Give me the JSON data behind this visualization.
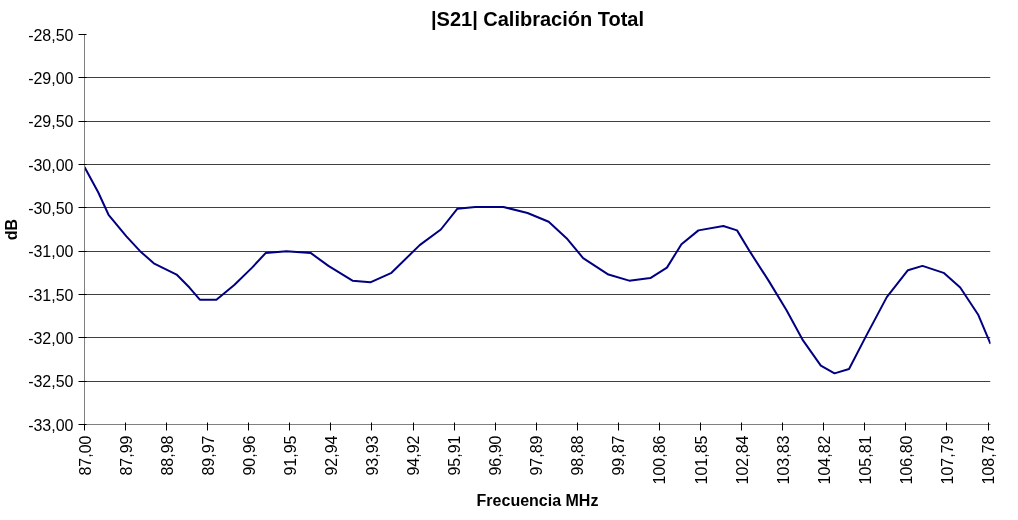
{
  "chart_data": {
    "type": "line",
    "title": "|S21| Calibración Total",
    "xlabel": "Frecuencia MHz",
    "ylabel": "dB",
    "xlim": [
      87,
      108.84
    ],
    "xticks": [
      {
        "value": 87.0,
        "label": "87,00"
      },
      {
        "value": 87.99,
        "label": "87,99"
      },
      {
        "value": 88.98,
        "label": "88,98"
      },
      {
        "value": 89.97,
        "label": "89,97"
      },
      {
        "value": 90.96,
        "label": "90,96"
      },
      {
        "value": 91.95,
        "label": "91,95"
      },
      {
        "value": 92.94,
        "label": "92,94"
      },
      {
        "value": 93.93,
        "label": "93,93"
      },
      {
        "value": 94.92,
        "label": "94,92"
      },
      {
        "value": 95.91,
        "label": "95,91"
      },
      {
        "value": 96.9,
        "label": "96,90"
      },
      {
        "value": 97.89,
        "label": "97,89"
      },
      {
        "value": 98.88,
        "label": "98,88"
      },
      {
        "value": 99.87,
        "label": "99,87"
      },
      {
        "value": 100.86,
        "label": "100,86"
      },
      {
        "value": 101.85,
        "label": "101,85"
      },
      {
        "value": 102.84,
        "label": "102,84"
      },
      {
        "value": 103.83,
        "label": "103,83"
      },
      {
        "value": 104.82,
        "label": "104,82"
      },
      {
        "value": 105.81,
        "label": "105,81"
      },
      {
        "value": 106.8,
        "label": "106,80"
      },
      {
        "value": 107.79,
        "label": "107,79"
      },
      {
        "value": 108.78,
        "label": "108,78"
      }
    ],
    "ylim": [
      -33,
      -28.5
    ],
    "yticks": [
      {
        "value": -33,
        "label": "-33,00"
      },
      {
        "value": -32.5,
        "label": "-32,50"
      },
      {
        "value": -32,
        "label": "-32,00"
      },
      {
        "value": -31.5,
        "label": "-31,50"
      },
      {
        "value": -31,
        "label": "-31,00"
      },
      {
        "value": -30.5,
        "label": "-30,50"
      },
      {
        "value": -30,
        "label": "-30,00"
      },
      {
        "value": -29.5,
        "label": "-29,50"
      },
      {
        "value": -29,
        "label": "-29,00"
      },
      {
        "value": -28.5,
        "label": "-28,50"
      }
    ],
    "grid": "y",
    "marker": "none",
    "line_style": "solid",
    "series": [
      {
        "color": "#000080",
        "x": [
          87.0,
          87.33,
          87.58,
          88.01,
          88.34,
          88.67,
          89.22,
          89.53,
          89.78,
          90.18,
          90.61,
          91.04,
          91.37,
          91.87,
          92.45,
          92.88,
          93.46,
          93.89,
          94.4,
          95.08,
          95.59,
          95.99,
          96.42,
          97.1,
          97.68,
          98.19,
          98.62,
          99.02,
          99.63,
          100.13,
          100.64,
          101.04,
          101.39,
          101.8,
          102.4,
          102.73,
          103.06,
          103.49,
          103.92,
          104.32,
          104.75,
          105.08,
          105.43,
          105.84,
          106.34,
          106.85,
          107.2,
          107.71,
          108.11,
          108.54,
          108.84
        ],
        "values": [
          -30.03,
          -30.32,
          -30.58,
          -30.83,
          -31.0,
          -31.14,
          -31.27,
          -31.42,
          -31.56,
          -31.56,
          -31.39,
          -31.19,
          -31.02,
          -31.0,
          -31.02,
          -31.17,
          -31.34,
          -31.36,
          -31.25,
          -30.93,
          -30.75,
          -30.51,
          -30.49,
          -30.49,
          -30.56,
          -30.66,
          -30.85,
          -31.08,
          -31.27,
          -31.34,
          -31.31,
          -31.19,
          -30.92,
          -30.76,
          -30.71,
          -30.76,
          -31.02,
          -31.34,
          -31.68,
          -32.03,
          -32.32,
          -32.41,
          -32.36,
          -31.98,
          -31.53,
          -31.22,
          -31.17,
          -31.25,
          -31.42,
          -31.73,
          -32.07
        ]
      }
    ]
  }
}
